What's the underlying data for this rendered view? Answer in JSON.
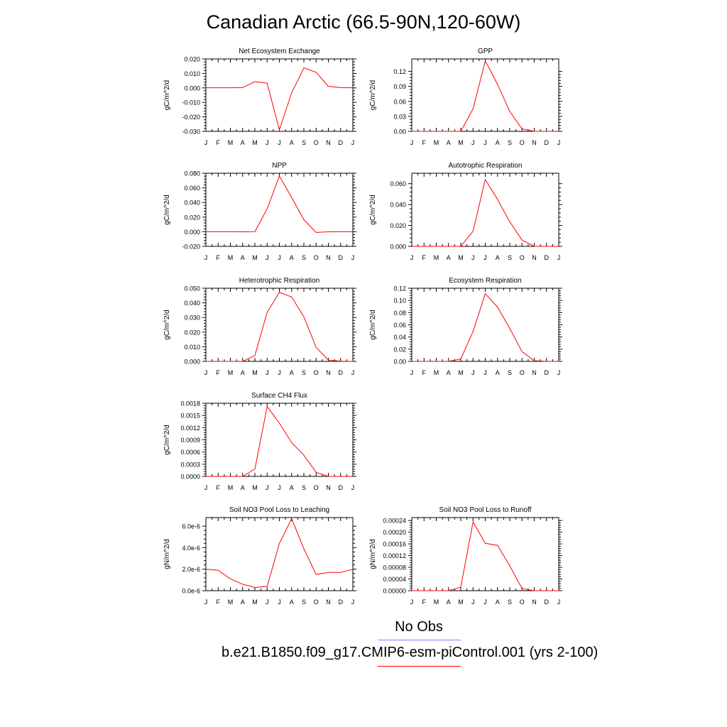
{
  "title": "Canadian Arctic (66.5-90N,120-60W)",
  "months": [
    "J",
    "F",
    "M",
    "A",
    "M",
    "J",
    "J",
    "A",
    "S",
    "O",
    "N",
    "D",
    "J"
  ],
  "colors": {
    "model": "#ff0000",
    "obs": "#8080ff",
    "axis": "#000000"
  },
  "chart_data": [
    {
      "type": "line",
      "title": "Net Ecosystem Exchange",
      "ylabel": "gC/m^2/d",
      "ylim": [
        -0.03,
        0.02
      ],
      "yticks": [
        -0.03,
        -0.02,
        -0.01,
        0.0,
        0.01,
        0.02
      ],
      "ytick_labels": [
        "-0.030",
        "-0.020",
        "-0.010",
        "0.000",
        "0.010",
        "0.020"
      ],
      "series": [
        {
          "values": [
            0.0001,
            0.0001,
            0.0001,
            0.0002,
            0.0043,
            0.0033,
            -0.029,
            -0.0035,
            0.0138,
            0.0108,
            0.0011,
            0.0002,
            0.0001
          ]
        }
      ]
    },
    {
      "type": "line",
      "title": "GPP",
      "ylabel": "gC/m^2/d",
      "ylim": [
        0.0,
        0.145
      ],
      "yticks": [
        0.0,
        0.03,
        0.06,
        0.09,
        0.12
      ],
      "ytick_labels": [
        "0.00",
        "0.03",
        "0.06",
        "0.09",
        "0.12"
      ],
      "series": [
        {
          "values": [
            0.0,
            0.0,
            0.0,
            0.0,
            0.0,
            0.045,
            0.141,
            0.094,
            0.04,
            0.005,
            0.0,
            0.0,
            0.0
          ]
        }
      ]
    },
    {
      "type": "line",
      "title": "NPP",
      "ylabel": "gC/m^2/d",
      "ylim": [
        -0.02,
        0.08
      ],
      "yticks": [
        -0.02,
        0.0,
        0.02,
        0.04,
        0.06,
        0.08
      ],
      "ytick_labels": [
        "-0.020",
        "0.000",
        "0.020",
        "0.040",
        "0.060",
        "0.080"
      ],
      "series": [
        {
          "values": [
            0.0,
            0.0,
            0.0,
            -0.0001,
            0.0,
            0.0315,
            0.076,
            0.047,
            0.0165,
            -0.001,
            -0.0001,
            0.0,
            0.0
          ]
        }
      ]
    },
    {
      "type": "line",
      "title": "Autotrophic Respiration",
      "ylabel": "gC/m^2/d",
      "ylim": [
        0.0,
        0.07
      ],
      "yticks": [
        0.0,
        0.02,
        0.04,
        0.06
      ],
      "ytick_labels": [
        "0.000",
        "0.020",
        "0.040",
        "0.060"
      ],
      "series": [
        {
          "values": [
            0.0,
            0.0,
            0.0,
            0.0,
            0.0,
            0.0145,
            0.064,
            0.045,
            0.0235,
            0.006,
            0.0,
            0.0,
            0.0
          ]
        }
      ]
    },
    {
      "type": "line",
      "title": "Heterotrophic Respiration",
      "ylabel": "gC/m^2/d",
      "ylim": [
        0.0,
        0.05
      ],
      "yticks": [
        0.0,
        0.01,
        0.02,
        0.03,
        0.04,
        0.05
      ],
      "ytick_labels": [
        "0.000",
        "0.010",
        "0.020",
        "0.030",
        "0.040",
        "0.050"
      ],
      "series": [
        {
          "values": [
            0.0,
            0.0,
            0.0,
            0.0,
            0.004,
            0.0335,
            0.0472,
            0.044,
            0.0305,
            0.0095,
            0.0009,
            0.0001,
            0.0
          ]
        }
      ]
    },
    {
      "type": "line",
      "title": "Ecosystem Respiration",
      "ylabel": "gC/m^2/d",
      "ylim": [
        0.0,
        0.12
      ],
      "yticks": [
        0.0,
        0.02,
        0.04,
        0.06,
        0.08,
        0.1,
        0.12
      ],
      "ytick_labels": [
        "0.00",
        "0.02",
        "0.04",
        "0.06",
        "0.08",
        "0.10",
        "0.12"
      ],
      "series": [
        {
          "values": [
            0.0,
            0.0,
            0.0,
            0.0,
            0.004,
            0.049,
            0.111,
            0.089,
            0.054,
            0.016,
            0.001,
            0.0,
            0.0
          ]
        }
      ]
    },
    {
      "type": "line",
      "title": "Surface CH4 Flux",
      "ylabel": "gC/m^2/d",
      "ylim": [
        0.0,
        0.0018
      ],
      "yticks": [
        0.0,
        0.0003,
        0.0006,
        0.0009,
        0.0012,
        0.0015,
        0.0018
      ],
      "ytick_labels": [
        "0.0000",
        "0.0003",
        "0.0006",
        "0.0009",
        "0.0012",
        "0.0015",
        "0.0018"
      ],
      "series": [
        {
          "values": [
            0.0,
            0.0,
            0.0,
            0.0,
            0.00018,
            0.00172,
            0.00131,
            0.00083,
            0.00052,
            0.0001,
            0.0,
            0.0,
            0.0
          ]
        }
      ]
    },
    {
      "type": "line",
      "title": "Soil NO3 Pool Loss to Leaching",
      "ylabel": "gN/m^2/d",
      "ylim": [
        0.0,
        6.8e-06
      ],
      "yticks": [
        0.0,
        2e-06,
        4e-06,
        6e-06
      ],
      "ytick_labels": [
        "0.0e-6",
        "2.0e-6",
        "4.0e-6",
        "6.0e-6"
      ],
      "series": [
        {
          "values": [
            2e-06,
            1.9e-06,
            1.1e-06,
            6e-07,
            3e-07,
            4e-07,
            4.4e-06,
            6.7e-06,
            3.9e-06,
            1.5e-06,
            1.7e-06,
            1.7e-06,
            2e-06
          ]
        }
      ]
    },
    {
      "type": "line",
      "title": "Soil NO3 Pool Loss to Runoff",
      "ylabel": "gN/m^2/d",
      "ylim": [
        0.0,
        0.00025
      ],
      "yticks": [
        0.0,
        4e-05,
        8e-05,
        0.00012,
        0.00016,
        0.0002,
        0.00024
      ],
      "ytick_labels": [
        "0.00000",
        "0.00004",
        "0.00008",
        "0.00012",
        "0.00016",
        "0.00020",
        "0.00024"
      ],
      "series": [
        {
          "values": [
            0.0,
            0.0,
            0.0,
            0.0,
            1.2e-05,
            0.000235,
            0.000162,
            0.000155,
            8.5e-05,
            7e-06,
            0.0,
            0.0,
            0.0
          ]
        }
      ]
    }
  ],
  "legend": {
    "obs_label": "No Obs",
    "model_label": "b.e21.B1850.f09_g17.CMIP6-esm-piControl.001 (yrs 2-100)"
  }
}
